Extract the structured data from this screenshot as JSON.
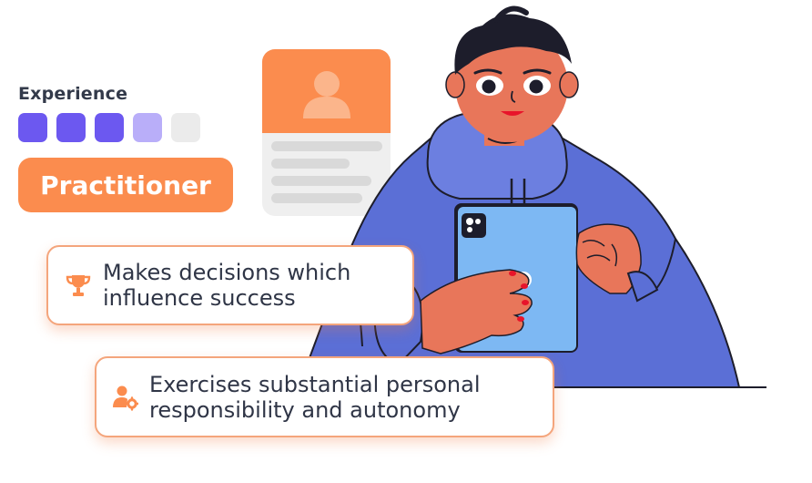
{
  "experience": {
    "label": "Experience",
    "levels_total": 5,
    "levels_full": 3,
    "levels_partial": 1,
    "level_name": "Practitioner"
  },
  "traits": [
    {
      "icon": "trophy-icon",
      "text": "Makes decisions which\ninfluence success"
    },
    {
      "icon": "user-gear-icon",
      "text": "Exercises substantial personal\nresponsibility and autonomy"
    }
  ],
  "colors": {
    "accent_orange": "#fb8c4e",
    "level_full": "#6c58f0",
    "level_partial": "#b9aef9",
    "level_empty": "#ebebeb",
    "hoodie": "#5b6fd6",
    "tablet": "#7db8f3"
  }
}
